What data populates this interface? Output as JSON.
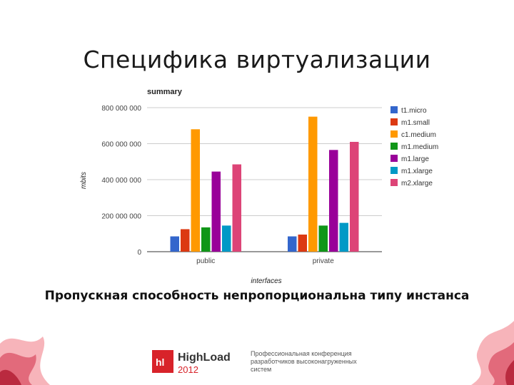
{
  "slide": {
    "title": "Специфика виртуализации",
    "caption": "Пропускная способность непропорциональна типу инстанса"
  },
  "footer": {
    "logo_badge": "hl",
    "logo_name": "HighLoad",
    "logo_year": "2012",
    "tagline": "Профессиональная конференция разработчиков высоконагруженных систем"
  },
  "colors": {
    "t1.micro": "#3366cc",
    "m1.small": "#dc3912",
    "c1.medium": "#ff9900",
    "m1.medium": "#109618",
    "m1.large": "#990099",
    "m1.xlarge": "#0099c6",
    "m2.xlarge": "#dd4477",
    "brand_red": "#d8232a"
  },
  "chart_data": {
    "type": "bar",
    "title": "summary",
    "xlabel": "interfaces",
    "ylabel": "mbits",
    "categories": [
      "public",
      "private"
    ],
    "ylim": [
      0,
      800000000
    ],
    "yticks": [
      0,
      200000000,
      400000000,
      600000000,
      800000000
    ],
    "ytick_labels": [
      "0",
      "200 000 000",
      "400 000 000",
      "600 000 000",
      "800 000 000"
    ],
    "grid": true,
    "legend": "right",
    "series": [
      {
        "name": "t1.micro",
        "values": [
          85000000,
          85000000
        ]
      },
      {
        "name": "m1.small",
        "values": [
          125000000,
          95000000
        ]
      },
      {
        "name": "c1.medium",
        "values": [
          680000000,
          750000000
        ]
      },
      {
        "name": "m1.medium",
        "values": [
          135000000,
          145000000
        ]
      },
      {
        "name": "m1.large",
        "values": [
          445000000,
          565000000
        ]
      },
      {
        "name": "m1.xlarge",
        "values": [
          145000000,
          160000000
        ]
      },
      {
        "name": "m2.xlarge",
        "values": [
          485000000,
          610000000
        ]
      }
    ]
  }
}
